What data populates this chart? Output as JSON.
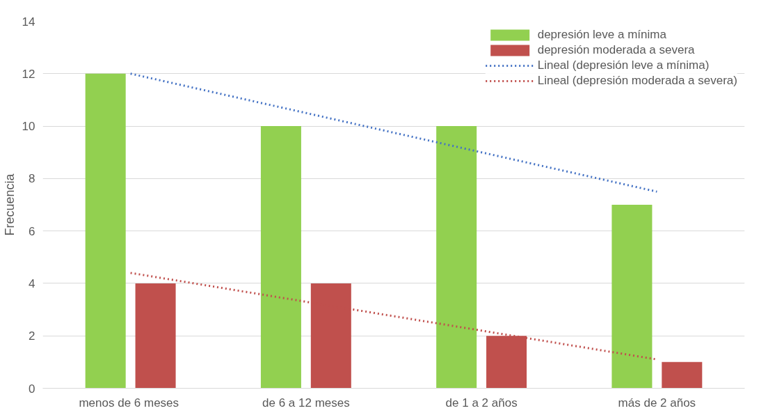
{
  "chart_data": {
    "type": "bar",
    "ylabel": "Frecuencia",
    "categories": [
      "menos de 6  meses",
      "de 6 a 12 meses",
      "de 1 a 2 años",
      "más de 2 años"
    ],
    "series": [
      {
        "name": "depresión leve a mínima",
        "color": "#92d050",
        "values": [
          12,
          10,
          10,
          7
        ]
      },
      {
        "name": "depresión moderada a severa",
        "color": "#c0504d",
        "values": [
          4,
          4,
          2,
          1
        ]
      },
      {
        "name": "Lineal (depresión leve a mínima)",
        "type": "line",
        "line_style": "dotted",
        "color": "#4472c4",
        "values": [
          12,
          10.5,
          9,
          7.5
        ]
      },
      {
        "name": "Lineal (depresión moderada a severa)",
        "type": "line",
        "line_style": "dotted",
        "color": "#c0504d",
        "values": [
          4.4,
          3.3,
          2.2,
          1.1
        ]
      }
    ],
    "ylim": [
      0,
      14
    ],
    "yticks": [
      0,
      2,
      4,
      6,
      8,
      10,
      12,
      14
    ],
    "grid": "y",
    "legend": "top right"
  }
}
